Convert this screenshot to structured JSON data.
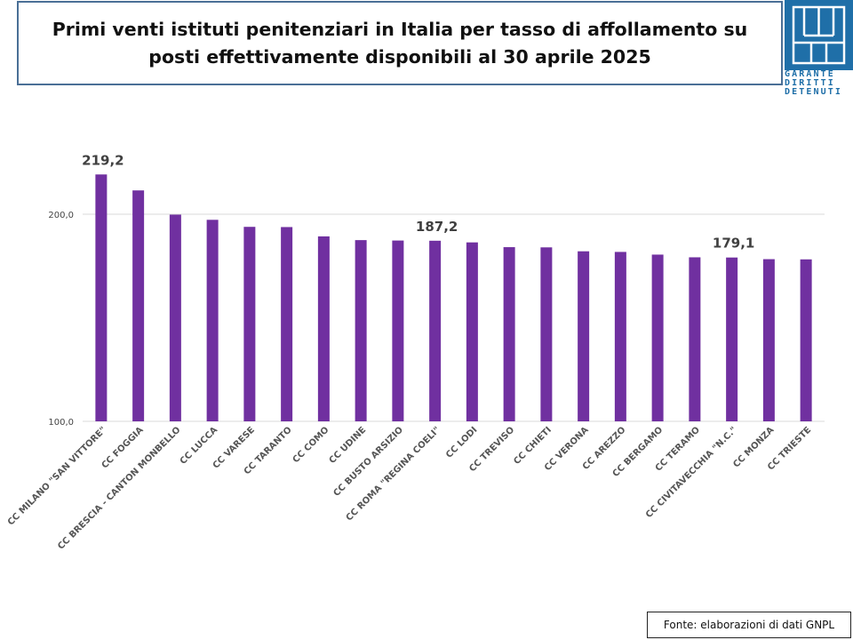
{
  "title": "Primi venti istituti penitenziari in Italia per tasso di affollamento su posti effettivamente disponibili al 30 aprile 2025",
  "logo": {
    "lines": [
      "GARANTE",
      "DIRITTI",
      "DETENUTI"
    ],
    "color": "#1f6fa8",
    "icon": "garante-logo-icon"
  },
  "source": "Fonte: elaborazioni di dati GNPL",
  "chart_data": {
    "type": "bar",
    "title": "Primi venti istituti penitenziari in Italia per tasso di affollamento su posti effettivamente disponibili al 30 aprile 2025",
    "xlabel": "",
    "ylabel": "",
    "ylim": [
      100,
      240
    ],
    "yticks": [
      100,
      200
    ],
    "ytick_labels": [
      "100,0",
      "200,0"
    ],
    "grid": true,
    "legend": "none",
    "bar_color": "#7030a0",
    "categories": [
      "CC MILANO \"SAN VITTORE\"",
      "CC FOGGIA",
      "CC BRESCIA - CANTON MONBELLO",
      "CC LUCCA",
      "CC VARESE",
      "CC TARANTO",
      "CC COMO",
      "CC UDINE",
      "CC BUSTO ARSIZIO",
      "CC ROMA \"REGINA COELI\"",
      "CC LODI",
      "CC TREVISO",
      "CC CHIETI",
      "CC VERONA",
      "CC AREZZO",
      "CC BERGAMO",
      "CC TERAMO",
      "CC CIVITAVECCHIA \"N.C.\"",
      "CC MONZA",
      "CC TRIESTE"
    ],
    "values": [
      219.2,
      211.5,
      199.8,
      197.3,
      193.9,
      193.8,
      189.3,
      187.5,
      187.3,
      187.2,
      186.4,
      184.1,
      184.0,
      182.1,
      181.8,
      180.5,
      179.2,
      179.1,
      178.3,
      178.2
    ],
    "data_labels": [
      {
        "index": 0,
        "text": "219,2"
      },
      {
        "index": 9,
        "text": "187,2"
      },
      {
        "index": 17,
        "text": "179,1"
      }
    ]
  }
}
